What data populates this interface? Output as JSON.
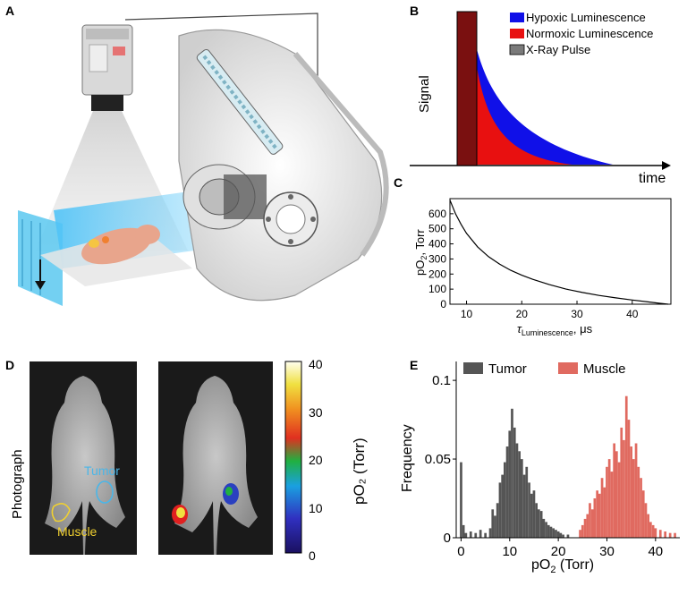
{
  "panel_labels": {
    "a": "A",
    "b": "B",
    "c": "C",
    "d": "D",
    "e": "E"
  },
  "panel_b": {
    "legend": [
      "Hypoxic Luminescence",
      "Normoxic Luminescence",
      "X-Ray Pulse"
    ],
    "ylabel": "Signal",
    "xlabel": "time",
    "colors": {
      "hypoxic": "#1010e8",
      "normoxic": "#e81010",
      "xray": "#7a1010"
    }
  },
  "panel_d": {
    "photo_label": "Photograph",
    "tumor_label": "Tumor",
    "muscle_label": "Muscle",
    "colorbar_ticks": [
      "40",
      "30",
      "20",
      "10",
      "0"
    ],
    "colorbar_label": "pO₂ (Torr)"
  },
  "chart_data": [
    {
      "type": "line",
      "panel": "C",
      "ylabel_main": "pO",
      "ylabel_sub": "2",
      "ylabel_rest": ", Torr",
      "xlabel_sym": "τ",
      "xlabel_sub": "Luminescence",
      "xlabel_rest": ", μs",
      "xlim": [
        7,
        47
      ],
      "ylim": [
        0,
        700
      ],
      "xticks": [
        "10",
        "20",
        "30",
        "40"
      ],
      "yticks": [
        "0",
        "100",
        "200",
        "300",
        "400",
        "500",
        "600"
      ],
      "x": [
        7,
        8,
        9,
        10,
        12,
        14,
        16,
        18,
        20,
        22,
        25,
        28,
        31,
        34,
        37,
        40,
        43,
        45,
        46.5
      ],
      "y": [
        690,
        600,
        530,
        470,
        380,
        315,
        265,
        225,
        192,
        165,
        130,
        100,
        78,
        58,
        42,
        28,
        15,
        6,
        0
      ]
    },
    {
      "type": "bar",
      "panel": "E",
      "ylabel": "Frequency",
      "xlabel_main": "pO",
      "xlabel_sub": "2",
      "xlabel_rest": " (Torr)",
      "xlim": [
        -1,
        45
      ],
      "ylim": [
        0,
        0.112
      ],
      "xticks": [
        "0",
        "10",
        "20",
        "30",
        "40"
      ],
      "yticks": [
        "0",
        "0.05",
        "0.1"
      ],
      "series": [
        {
          "name": "Tumor",
          "color": "#555555",
          "x": [
            0,
            0.5,
            1,
            2,
            3,
            4,
            5,
            6,
            6.5,
            7,
            7.5,
            8,
            8.5,
            9,
            9.5,
            10,
            10.5,
            11,
            11.5,
            12,
            12.5,
            13,
            13.5,
            14,
            14.5,
            15,
            15.5,
            16,
            16.5,
            17,
            17.5,
            18,
            18.5,
            19,
            19.5,
            20,
            20.5,
            21,
            22
          ],
          "values": [
            0.048,
            0.008,
            0.003,
            0.004,
            0.003,
            0.005,
            0.003,
            0.006,
            0.018,
            0.014,
            0.022,
            0.035,
            0.04,
            0.048,
            0.058,
            0.068,
            0.082,
            0.07,
            0.06,
            0.055,
            0.05,
            0.04,
            0.045,
            0.035,
            0.028,
            0.03,
            0.022,
            0.018,
            0.017,
            0.012,
            0.01,
            0.008,
            0.007,
            0.006,
            0.005,
            0.004,
            0.003,
            0.002,
            0.002
          ]
        },
        {
          "name": "Muscle",
          "color": "#e06a60",
          "x": [
            24.5,
            25,
            25.5,
            26,
            26.5,
            27,
            27.5,
            28,
            28.5,
            29,
            29.5,
            30,
            30.5,
            31,
            31.5,
            32,
            32.5,
            33,
            33.5,
            34,
            34.5,
            35,
            35.5,
            36,
            36.5,
            37,
            37.5,
            38,
            38.5,
            39,
            39.5,
            40,
            41,
            42,
            43,
            44
          ],
          "values": [
            0.005,
            0.008,
            0.012,
            0.015,
            0.022,
            0.018,
            0.025,
            0.03,
            0.028,
            0.038,
            0.032,
            0.045,
            0.05,
            0.042,
            0.06,
            0.055,
            0.048,
            0.07,
            0.062,
            0.09,
            0.075,
            0.058,
            0.05,
            0.06,
            0.045,
            0.038,
            0.03,
            0.022,
            0.015,
            0.01,
            0.008,
            0.006,
            0.005,
            0.004,
            0.003,
            0.003
          ]
        }
      ]
    }
  ]
}
